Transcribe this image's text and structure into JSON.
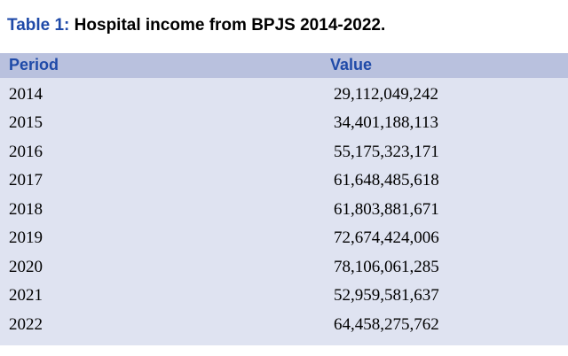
{
  "caption": {
    "number": "Table 1:",
    "title": "Hospital income from BPJS 2014-2022."
  },
  "table": {
    "columns": [
      "Period",
      "Value"
    ],
    "rows": [
      {
        "period": "2014",
        "value": "29,112,049,242"
      },
      {
        "period": "2015",
        "value": "34,401,188,113"
      },
      {
        "period": "2016",
        "value": "55,175,323,171"
      },
      {
        "period": "2017",
        "value": "61,648,485,618"
      },
      {
        "period": "2018",
        "value": "61,803,881,671"
      },
      {
        "period": "2019",
        "value": "72,674,424,006"
      },
      {
        "period": "2020",
        "value": "78,106,061,285"
      },
      {
        "period": "2021",
        "value": "52,959,581,637"
      },
      {
        "period": "2022",
        "value": "64,458,275,762"
      }
    ]
  },
  "colors": {
    "accent": "#1f4aa8",
    "header_bg": "#b9c1de",
    "body_bg": "#dfe3f1"
  }
}
